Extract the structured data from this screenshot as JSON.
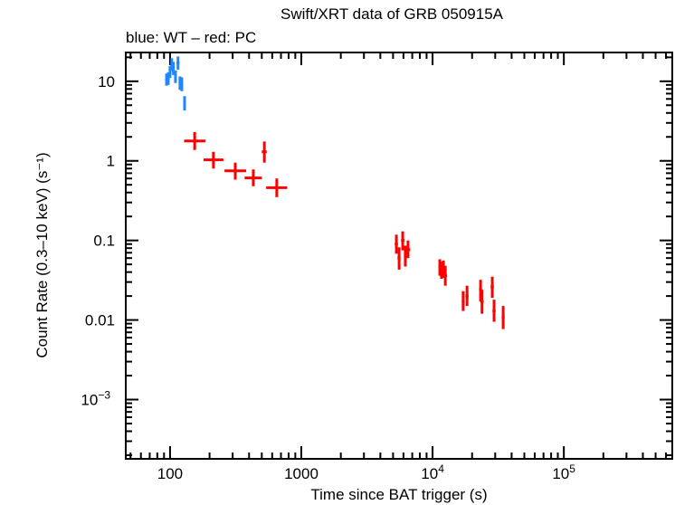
{
  "chart_data": {
    "type": "scatter",
    "title": "Swift/XRT data of GRB 050915A",
    "subtitle": "blue: WT – red: PC",
    "xlabel": "Time since BAT trigger (s)",
    "ylabel": "Count Rate (0.3–10 keV) (s⁻¹)",
    "xscale": "log",
    "yscale": "log",
    "xlim": [
      46,
      670000
    ],
    "ylim": [
      0.00018,
      23
    ],
    "grid": false,
    "x_ticks": [
      {
        "value": 100,
        "label": "100"
      },
      {
        "value": 1000,
        "label": "1000"
      },
      {
        "value": 10000,
        "label": "10",
        "exp": "4"
      },
      {
        "value": 100000,
        "label": "10",
        "exp": "5"
      }
    ],
    "y_ticks": [
      {
        "value": 10,
        "label": "10"
      },
      {
        "value": 1,
        "label": "1"
      },
      {
        "value": 0.1,
        "label": "0.1"
      },
      {
        "value": 0.01,
        "label": "0.01"
      },
      {
        "value": 0.001,
        "label": "10",
        "exp": "−3"
      }
    ],
    "series": [
      {
        "name": "WT",
        "color": "#1f86ff",
        "points": [
          {
            "x": 94,
            "y": 10.5,
            "xerr": [
              92,
              96
            ],
            "yerr": [
              8.8,
              12.5
            ]
          },
          {
            "x": 97,
            "y": 10.8,
            "xerr": [
              95,
              99
            ],
            "yerr": [
              9.0,
              13.0
            ]
          },
          {
            "x": 100,
            "y": 13,
            "xerr": [
              98,
              102
            ],
            "yerr": [
              11,
              15.5
            ]
          },
          {
            "x": 103,
            "y": 16,
            "xerr": [
              101,
              105
            ],
            "yerr": [
              13.5,
              19.5
            ]
          },
          {
            "x": 106,
            "y": 14.5,
            "xerr": [
              104,
              108
            ],
            "yerr": [
              12,
              17.5
            ]
          },
          {
            "x": 110,
            "y": 11.4,
            "xerr": [
              108,
              112
            ],
            "yerr": [
              9.5,
              13.7
            ]
          },
          {
            "x": 115,
            "y": 17,
            "xerr": [
              112,
              118
            ],
            "yerr": [
              14,
              20.5
            ]
          },
          {
            "x": 119,
            "y": 9.5,
            "xerr": [
              117,
              121
            ],
            "yerr": [
              7.8,
              11.5
            ]
          },
          {
            "x": 123,
            "y": 9.2,
            "xerr": [
              121,
              126
            ],
            "yerr": [
              7.5,
              11.2
            ]
          },
          {
            "x": 129,
            "y": 5.3,
            "xerr": [
              126,
              132
            ],
            "yerr": [
              4.3,
              6.5
            ]
          }
        ]
      },
      {
        "name": "PC",
        "color": "#ff0000",
        "points": [
          {
            "x": 154,
            "y": 1.78,
            "xerr": [
              128,
              186
            ],
            "yerr": [
              1.37,
              2.3
            ]
          },
          {
            "x": 214,
            "y": 1.03,
            "xerr": [
              180,
              255
            ],
            "yerr": [
              0.8,
              1.3
            ]
          },
          {
            "x": 314,
            "y": 0.75,
            "xerr": [
              260,
              380
            ],
            "yerr": [
              0.58,
              0.95
            ]
          },
          {
            "x": 431,
            "y": 0.61,
            "xerr": [
              370,
              500
            ],
            "yerr": [
              0.48,
              0.78
            ]
          },
          {
            "x": 523,
            "y": 1.3,
            "xerr": [
              500,
              545
            ],
            "yerr": [
              0.95,
              1.75
            ]
          },
          {
            "x": 650,
            "y": 0.46,
            "xerr": [
              540,
              780
            ],
            "yerr": [
              0.35,
              0.6
            ]
          },
          {
            "x": 5300,
            "y": 0.09,
            "xerr": [
              5150,
              5450
            ],
            "yerr": [
              0.068,
              0.118
            ]
          },
          {
            "x": 5560,
            "y": 0.06,
            "xerr": [
              5400,
              5700
            ],
            "yerr": [
              0.043,
              0.082
            ]
          },
          {
            "x": 5920,
            "y": 0.1,
            "xerr": [
              5750,
              6100
            ],
            "yerr": [
              0.075,
              0.13
            ]
          },
          {
            "x": 6200,
            "y": 0.064,
            "xerr": [
              6050,
              6350
            ],
            "yerr": [
              0.047,
              0.086
            ]
          },
          {
            "x": 6500,
            "y": 0.077,
            "xerr": [
              6300,
              6750
            ],
            "yerr": [
              0.06,
              0.1
            ]
          },
          {
            "x": 11350,
            "y": 0.046,
            "xerr": [
              11100,
              11600
            ],
            "yerr": [
              0.036,
              0.058
            ]
          },
          {
            "x": 11700,
            "y": 0.042,
            "xerr": [
              11450,
              11950
            ],
            "yerr": [
              0.033,
              0.054
            ]
          },
          {
            "x": 12100,
            "y": 0.044,
            "xerr": [
              11850,
              12350
            ],
            "yerr": [
              0.034,
              0.056
            ]
          },
          {
            "x": 12500,
            "y": 0.036,
            "xerr": [
              12200,
              12900
            ],
            "yerr": [
              0.027,
              0.048
            ]
          },
          {
            "x": 17100,
            "y": 0.017,
            "xerr": [
              16700,
              17500
            ],
            "yerr": [
              0.013,
              0.023
            ]
          },
          {
            "x": 18300,
            "y": 0.02,
            "xerr": [
              17800,
              18800
            ],
            "yerr": [
              0.015,
              0.027
            ]
          },
          {
            "x": 23200,
            "y": 0.024,
            "xerr": [
              22600,
              23800
            ],
            "yerr": [
              0.017,
              0.032
            ]
          },
          {
            "x": 23800,
            "y": 0.017,
            "xerr": [
              23200,
              24500
            ],
            "yerr": [
              0.012,
              0.024
            ]
          },
          {
            "x": 28500,
            "y": 0.026,
            "xerr": [
              27700,
              29300
            ],
            "yerr": [
              0.019,
              0.035
            ]
          },
          {
            "x": 29400,
            "y": 0.013,
            "xerr": [
              28600,
              30200
            ],
            "yerr": [
              0.0095,
              0.018
            ]
          },
          {
            "x": 34500,
            "y": 0.0108,
            "xerr": [
              33600,
              35400
            ],
            "yerr": [
              0.0077,
              0.015
            ]
          }
        ]
      }
    ]
  }
}
